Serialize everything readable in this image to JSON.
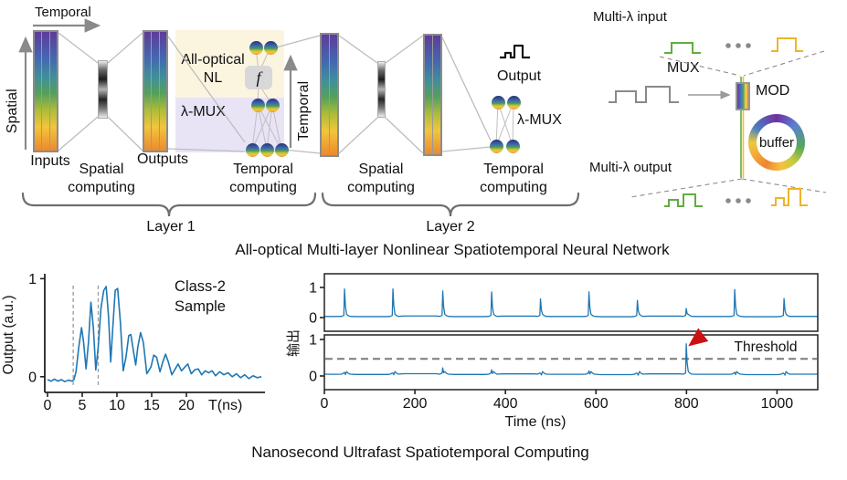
{
  "diagram": {
    "layer1": {
      "temporal_axis_label": "Temporal",
      "spatial_axis_label": "Spatial",
      "inputs_label": "Inputs",
      "spatial_computing_label": "Spatial computing",
      "outputs_label": "Outputs",
      "nl_label": "All-optical NL",
      "f_symbol": "f",
      "lambda_mux_label": "λ-MUX",
      "temporal_axis_label2": "Temporal",
      "temporal_computing_label": "Temporal computing",
      "brace_label": "Layer 1"
    },
    "layer2": {
      "spatial_computing_label": "Spatial computing",
      "output_label": "Output",
      "lambda_mux_label": "λ-MUX",
      "temporal_computing_label": "Temporal computing",
      "brace_label": "Layer 2"
    },
    "caption": "All-optical Multi-layer Nonlinear Spatiotemporal Neural Network"
  },
  "right_panel": {
    "input_label": "Multi-λ input",
    "mux_label": "MUX",
    "mod_label": "MOD",
    "buffer_label": "buffer",
    "output_label": "Multi-λ output"
  },
  "bottom_caption": "Nanosecond Ultrafast Spatiotemporal Computing",
  "colors": {
    "trace_blue": "#1f77b4",
    "threshold_gray": "#7a7a7a",
    "arrow_red": "#cc1111",
    "waveform_green": "#5fae3f",
    "waveform_yellow": "#f0b429",
    "waveform_gray": "#8a8a8a"
  },
  "chart_data": [
    {
      "type": "line",
      "name": "class2-sample-output",
      "ylabel": "Output (a.u.)",
      "xlabel": "T(ns)",
      "xticks": [
        0,
        5,
        10,
        15,
        20
      ],
      "yticks": [
        0,
        1
      ],
      "xlim": [
        0,
        31.3
      ],
      "ylim": [
        -0.16,
        1.05
      ],
      "vlines": [
        3.7,
        7.3
      ],
      "annotation_lines": [
        "Class-2",
        "Sample"
      ],
      "x": [
        0,
        0.5,
        1,
        1.5,
        2,
        2.5,
        3,
        3.5,
        3.8,
        4.1,
        4.5,
        4.9,
        5.2,
        5.55,
        5.9,
        6.25,
        6.6,
        6.95,
        7.3,
        7.7,
        8.1,
        8.45,
        8.8,
        9.1,
        9.4,
        9.75,
        10.1,
        10.5,
        10.9,
        11.3,
        11.7,
        12.0,
        12.4,
        12.7,
        13.0,
        13.4,
        13.8,
        14.3,
        14.9,
        15.3,
        15.7,
        16.2,
        16.6,
        17.0,
        17.4,
        17.9,
        18.4,
        18.8,
        19.3,
        19.8,
        20.2,
        20.7,
        21.2,
        21.7,
        22.2,
        22.7,
        23.2,
        23.7,
        24.2,
        24.8,
        25.4,
        26.0,
        26.6,
        27.2,
        27.8,
        28.4,
        29.0,
        29.6,
        30.2,
        30.8
      ],
      "y": [
        -0.03,
        -0.045,
        -0.025,
        -0.045,
        -0.03,
        -0.05,
        -0.035,
        -0.045,
        -0.03,
        0.05,
        0.3,
        0.5,
        0.35,
        0.08,
        0.35,
        0.76,
        0.5,
        0.07,
        0.3,
        0.7,
        0.88,
        0.92,
        0.6,
        0.15,
        0.5,
        0.88,
        0.9,
        0.55,
        0.06,
        0.2,
        0.42,
        0.43,
        0.25,
        0.12,
        0.3,
        0.45,
        0.35,
        0.03,
        0.1,
        0.22,
        0.2,
        0.05,
        0.15,
        0.23,
        0.15,
        0.02,
        0.08,
        0.13,
        0.06,
        0.1,
        0.13,
        0.03,
        0.07,
        0.08,
        0.02,
        0.06,
        0.04,
        0.06,
        0.01,
        0.05,
        0.02,
        0.04,
        0.0,
        0.03,
        -0.01,
        0.02,
        -0.02,
        0.01,
        -0.01,
        0.0
      ]
    },
    {
      "type": "line",
      "name": "spike-train-output",
      "xlabel": "Time (ns)",
      "ylabel": "输出",
      "xticks": [
        0,
        200,
        400,
        600,
        800,
        1000
      ],
      "xlim": [
        0,
        1090
      ],
      "subplot_top": {
        "yticks": [
          0,
          1
        ],
        "baseline": 0.04,
        "spike_times": [
          45,
          152,
          262,
          370,
          478,
          585,
          692,
          800,
          907,
          1016
        ],
        "spike_heights": [
          0.95,
          0.95,
          0.88,
          0.85,
          0.62,
          0.85,
          0.57,
          0.3,
          0.93,
          0.63
        ]
      },
      "subplot_bottom": {
        "yticks": [
          0,
          1
        ],
        "baseline": 0.05,
        "spike_times": [
          45,
          152,
          262,
          370,
          478,
          585,
          692,
          800,
          907,
          1016
        ],
        "spike_heights": [
          0.1,
          0.08,
          0.22,
          0.17,
          0.07,
          0.14,
          0.06,
          0.88,
          0.1,
          0.06
        ],
        "threshold": 0.47,
        "threshold_label": "Threshold",
        "marked_spike_time": 800
      }
    }
  ]
}
